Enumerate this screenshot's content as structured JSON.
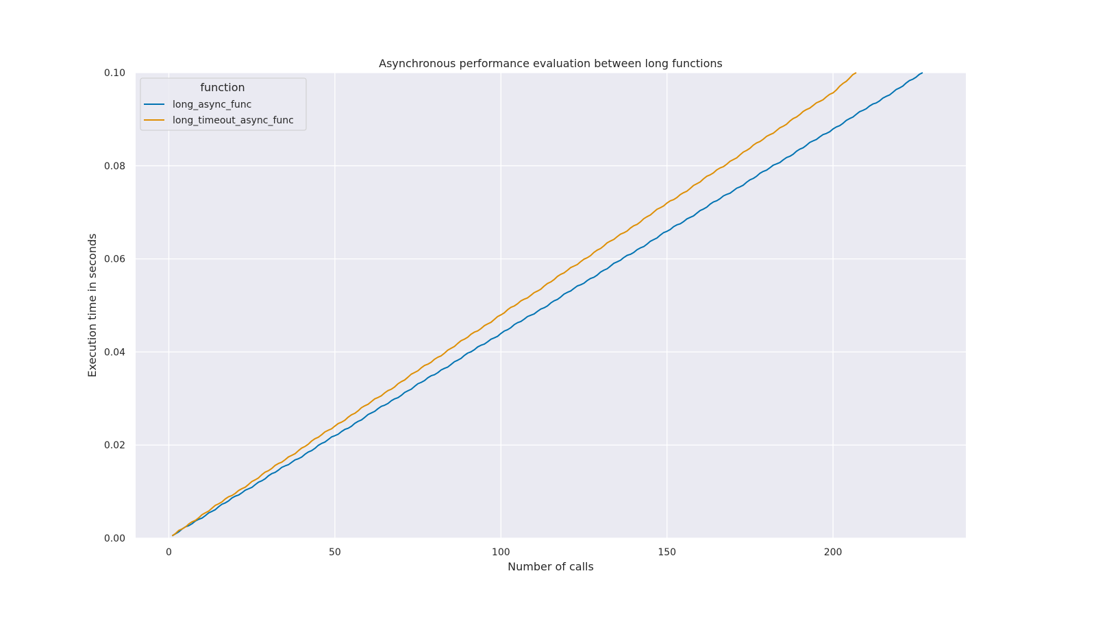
{
  "chart_data": {
    "type": "line",
    "title": "Asynchronous performance evaluation between long functions",
    "xlabel": "Number of calls",
    "ylabel": "Execution time in seconds",
    "xlim": [
      -10,
      240
    ],
    "ylim": [
      0.0,
      0.1
    ],
    "xticks": [
      0,
      50,
      100,
      150,
      200
    ],
    "xtick_labels": [
      "0",
      "50",
      "100",
      "150",
      "200"
    ],
    "yticks": [
      0.0,
      0.02,
      0.04,
      0.06,
      0.08,
      0.1
    ],
    "ytick_labels": [
      "0.00",
      "0.02",
      "0.04",
      "0.06",
      "0.08",
      "0.10"
    ],
    "grid": true,
    "background": "#eaeaf2",
    "legend": {
      "title": "function",
      "placement": "top-left"
    },
    "series": [
      {
        "name": "long_async_func",
        "color": "#0173b2",
        "x": [
          1,
          10,
          20,
          30,
          40,
          50,
          60,
          70,
          80,
          90,
          100,
          110,
          120,
          130,
          140,
          150,
          160,
          170,
          180,
          190,
          200,
          210,
          220,
          227
        ],
        "y": [
          0.0005,
          0.0045,
          0.0089,
          0.0133,
          0.0176,
          0.022,
          0.0264,
          0.0308,
          0.0352,
          0.0396,
          0.044,
          0.0483,
          0.0527,
          0.0571,
          0.0615,
          0.0659,
          0.0703,
          0.0747,
          0.0791,
          0.0835,
          0.0879,
          0.0923,
          0.0967,
          0.1
        ]
      },
      {
        "name": "long_timeout_async_func",
        "color": "#de8f05",
        "x": [
          1,
          10,
          20,
          30,
          40,
          50,
          60,
          70,
          80,
          90,
          100,
          110,
          120,
          130,
          140,
          150,
          160,
          170,
          180,
          190,
          200,
          207
        ],
        "y": [
          0.0005,
          0.005,
          0.0097,
          0.0145,
          0.0193,
          0.0241,
          0.0288,
          0.0336,
          0.0384,
          0.0432,
          0.048,
          0.0527,
          0.0575,
          0.0623,
          0.0671,
          0.0719,
          0.0766,
          0.0814,
          0.0862,
          0.091,
          0.0958,
          0.1
        ]
      }
    ]
  }
}
